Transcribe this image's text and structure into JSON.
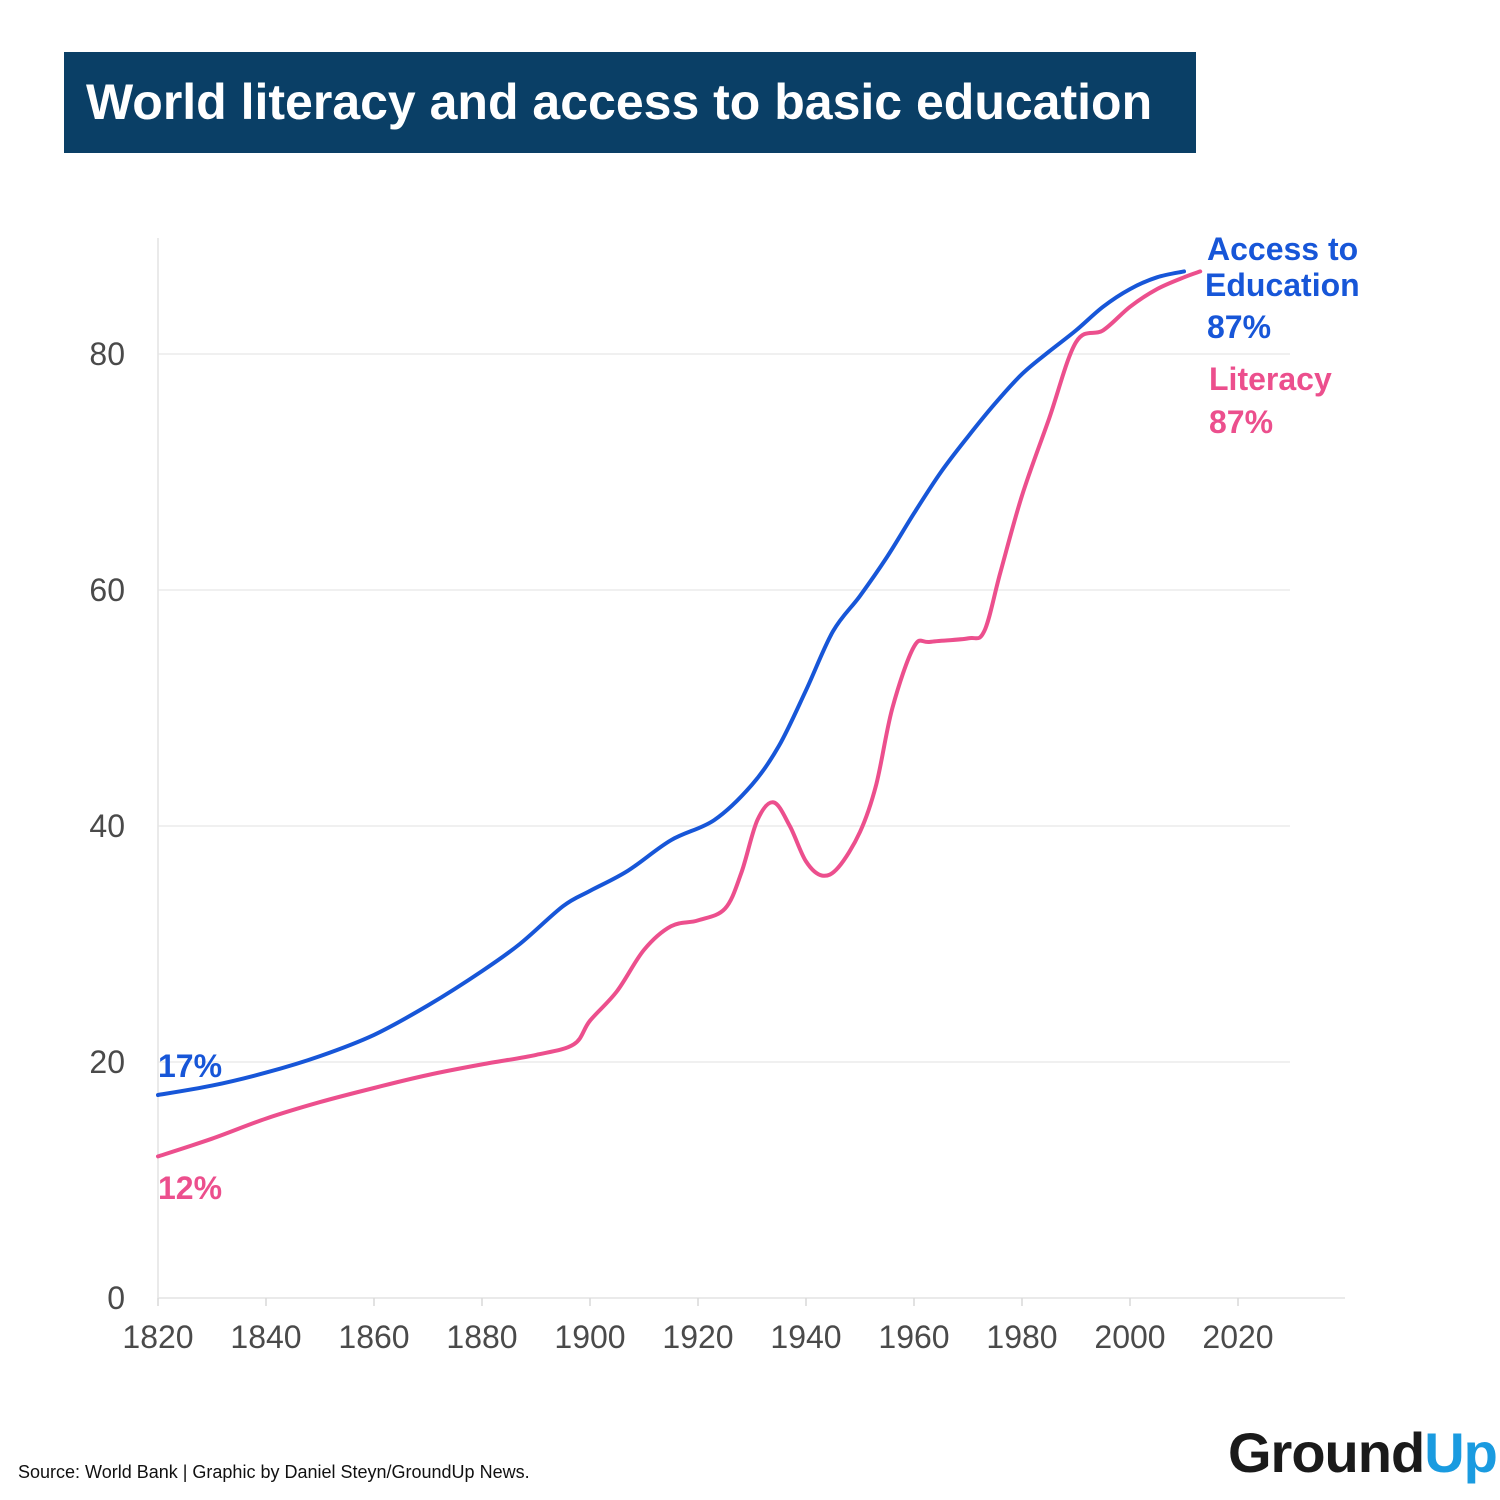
{
  "title": "World literacy and access to basic education",
  "footer": "Source: World Bank | Graphic by Daniel Steyn/GroundUp News.",
  "logo": {
    "part1": "Ground",
    "part2": "Up"
  },
  "colors": {
    "title_bg": "#0a3f66",
    "education": "#1756d8",
    "literacy": "#ec4f8d",
    "logo_accent": "#1a9be0"
  },
  "chart_data": {
    "type": "line",
    "title": "World literacy and access to basic education",
    "xlabel": "",
    "ylabel": "",
    "xlim": [
      1820,
      2030
    ],
    "ylim": [
      0,
      90
    ],
    "xticks": [
      1820,
      1840,
      1860,
      1880,
      1900,
      1920,
      1940,
      1960,
      1980,
      2000,
      2020
    ],
    "yticks": [
      0,
      20,
      40,
      60,
      80
    ],
    "grid": "horizontal",
    "series": [
      {
        "name": "Access to Education",
        "color": "#1756d8",
        "x": [
          1820,
          1830,
          1840,
          1850,
          1860,
          1870,
          1880,
          1887,
          1895,
          1900,
          1907,
          1915,
          1923,
          1930,
          1935,
          1940,
          1945,
          1950,
          1955,
          1960,
          1965,
          1970,
          1975,
          1980,
          1985,
          1990,
          1995,
          2000,
          2005,
          2010
        ],
        "y": [
          17.2,
          18.0,
          19.1,
          20.5,
          22.3,
          24.8,
          27.7,
          30.0,
          33.2,
          34.5,
          36.2,
          38.8,
          40.5,
          43.5,
          46.8,
          51.5,
          56.5,
          59.5,
          62.8,
          66.5,
          70.0,
          73.0,
          75.8,
          78.3,
          80.2,
          82.0,
          84.0,
          85.5,
          86.5,
          87.0
        ]
      },
      {
        "name": "Literacy",
        "color": "#ec4f8d",
        "x": [
          1820,
          1830,
          1840,
          1850,
          1860,
          1870,
          1880,
          1890,
          1897,
          1900,
          1905,
          1910,
          1915,
          1920,
          1925,
          1928,
          1931,
          1934,
          1937,
          1940,
          1943,
          1946,
          1950,
          1953,
          1956,
          1960,
          1963,
          1970,
          1973,
          1976,
          1980,
          1985,
          1990,
          1995,
          2000,
          2005,
          2010,
          2013
        ],
        "y": [
          12.0,
          13.5,
          15.2,
          16.6,
          17.8,
          18.9,
          19.8,
          20.6,
          21.5,
          23.5,
          26.0,
          29.5,
          31.5,
          32.0,
          33.0,
          36.0,
          40.5,
          42.0,
          40.0,
          37.0,
          35.8,
          36.5,
          39.5,
          43.5,
          50.0,
          55.2,
          55.6,
          55.9,
          56.5,
          61.5,
          68.0,
          74.5,
          81.0,
          82.0,
          84.0,
          85.5,
          86.5,
          87.0
        ]
      }
    ],
    "annotations": [
      {
        "series": "Access to Education",
        "line1": "Access to",
        "line2": "Education",
        "value": "87%",
        "start_value": "17%"
      },
      {
        "series": "Literacy",
        "line1": "Literacy",
        "value": "87%",
        "start_value": "12%"
      }
    ]
  }
}
